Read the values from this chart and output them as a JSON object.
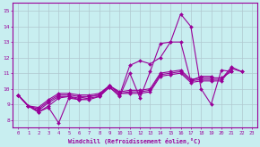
{
  "background_color": "#c8eef0",
  "grid_color": "#b0c8d0",
  "line_color": "#990099",
  "xlabel": "Windchill (Refroidissement éolien,°C)",
  "xlim": [
    -0.5,
    23.5
  ],
  "ylim": [
    7.5,
    15.5
  ],
  "yticks": [
    8,
    9,
    10,
    11,
    12,
    13,
    14,
    15
  ],
  "xticks": [
    0,
    1,
    2,
    3,
    4,
    5,
    6,
    7,
    8,
    9,
    10,
    11,
    12,
    13,
    14,
    15,
    16,
    17,
    18,
    19,
    20,
    21,
    22,
    23
  ],
  "series": [
    [
      9.6,
      8.9,
      8.5,
      8.8,
      7.8,
      9.4,
      9.3,
      9.3,
      9.5,
      10.1,
      9.5,
      11.0,
      9.4,
      11.1,
      12.9,
      13.0,
      14.8,
      14.0,
      10.0,
      9.0,
      11.2,
      11.1,
      null,
      null
    ],
    [
      9.6,
      8.9,
      8.5,
      8.9,
      9.4,
      9.5,
      9.3,
      9.4,
      9.5,
      10.1,
      9.6,
      11.5,
      11.8,
      11.6,
      12.0,
      13.0,
      13.0,
      10.5,
      10.8,
      10.8,
      null,
      null,
      null,
      null
    ],
    [
      9.6,
      8.9,
      8.6,
      9.1,
      9.5,
      9.5,
      9.4,
      9.5,
      9.6,
      10.2,
      9.7,
      9.7,
      9.7,
      9.8,
      10.8,
      10.9,
      11.0,
      10.4,
      10.5,
      10.5,
      10.5,
      11.3,
      11.1,
      null
    ],
    [
      9.6,
      8.9,
      8.7,
      9.2,
      9.6,
      9.6,
      9.5,
      9.5,
      9.6,
      10.2,
      9.7,
      9.8,
      9.8,
      9.9,
      10.9,
      11.0,
      11.1,
      10.5,
      10.6,
      10.6,
      10.6,
      11.4,
      11.1,
      null
    ],
    [
      9.6,
      8.9,
      8.8,
      9.3,
      9.7,
      9.7,
      9.6,
      9.6,
      9.7,
      10.2,
      9.8,
      9.9,
      9.9,
      10.0,
      11.0,
      11.1,
      11.2,
      10.6,
      10.7,
      10.7,
      10.7,
      11.1,
      null,
      null
    ]
  ]
}
